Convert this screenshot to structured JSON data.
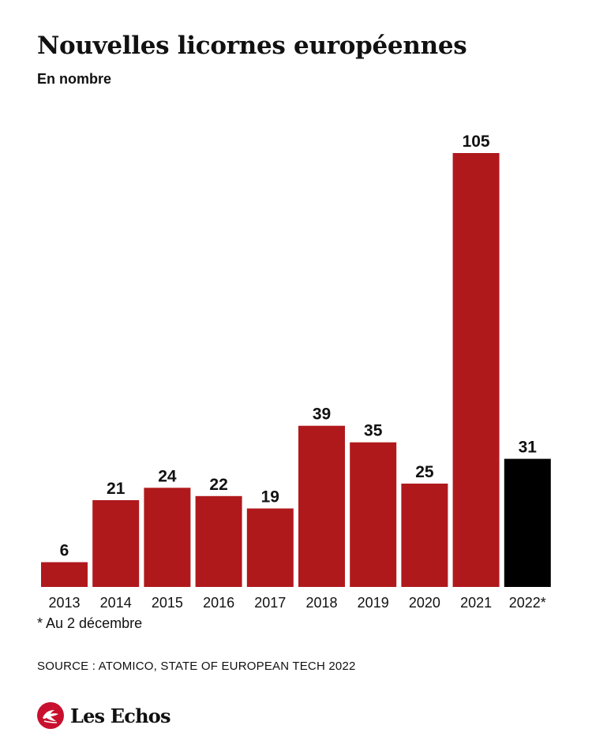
{
  "header": {
    "title": "Nouvelles licornes européennes",
    "subtitle": "En nombre"
  },
  "chart_data": {
    "type": "bar",
    "title": "Nouvelles licornes européennes",
    "subtitle": "En nombre",
    "categories": [
      "2013",
      "2014",
      "2015",
      "2016",
      "2017",
      "2018",
      "2019",
      "2020",
      "2021",
      "2022*"
    ],
    "values": [
      6,
      21,
      24,
      22,
      19,
      39,
      35,
      25,
      105,
      31
    ],
    "value_labels": [
      "6",
      "21",
      "24",
      "22",
      "19",
      "39",
      "35",
      "25",
      "105",
      "31"
    ],
    "colors": [
      "#b0191c",
      "#b0191c",
      "#b0191c",
      "#b0191c",
      "#b0191c",
      "#b0191c",
      "#b0191c",
      "#b0191c",
      "#b0191c",
      "#000000"
    ],
    "xlabel": "",
    "ylabel": "",
    "ylim": [
      0,
      105
    ],
    "grid": false,
    "legend": "none"
  },
  "footer": {
    "footnote": "* Au 2 décembre",
    "source": "SOURCE : ATOMICO, STATE OF EUROPEAN TECH 2022",
    "brand": "Les Echos",
    "brand_color": "#c8102e",
    "brand_icon": "les-echos-logo-icon"
  }
}
